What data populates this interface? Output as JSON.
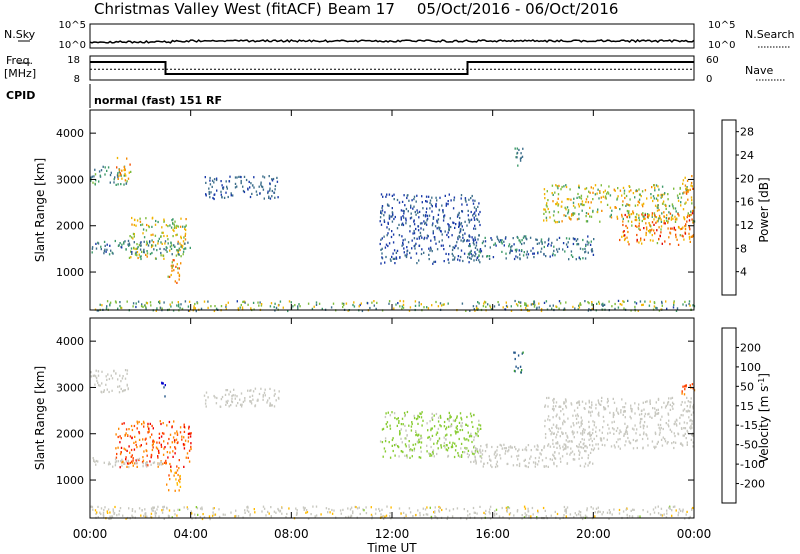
{
  "header": {
    "title": "Christmas Valley West (fitACF)",
    "beam": "Beam 17",
    "date_range": "05/Oct/2016 - 06/Oct/2016"
  },
  "side_labels": {
    "nsky": "N.Sky",
    "freq_line1": "Freq.",
    "freq_line2": "[MHz]",
    "cpid": "CPID",
    "nsearch": "N.Search",
    "nave": "Nave"
  },
  "cpid_text": "normal (fast) 151 RF",
  "noise_axis": {
    "left_ticks": [
      "10^5",
      "10^0"
    ],
    "right_ticks": [
      "10^5",
      "10^0"
    ]
  },
  "freq_axis": {
    "left_ticks": [
      "18",
      "8"
    ],
    "right_ticks": [
      "60",
      "0"
    ]
  },
  "colors": {
    "power": [
      "#0a00ff",
      "#1a3aa8",
      "#3c6e8a",
      "#3e9a6a",
      "#7dbb3a",
      "#f0b400",
      "#f58a00",
      "#f55000",
      "#e00000"
    ],
    "velocity": [
      "#ee0000",
      "#ff4400",
      "#ff8800",
      "#ffbb00",
      "#c8c8c0",
      "#88cc33",
      "#339933",
      "#225588",
      "#0000cc"
    ]
  },
  "chart_data": [
    {
      "type": "heatmap",
      "name": "power",
      "xlabel": "",
      "ylabel": "Slant Range [km]",
      "yticks": [
        1000,
        2000,
        3000,
        4000
      ],
      "ylim": [
        180,
        4500
      ],
      "xlim_hours": [
        0,
        24
      ],
      "colorbar": {
        "label": "Power [dB]",
        "ticks": [
          4,
          8,
          12,
          16,
          20,
          24,
          28
        ],
        "range": [
          0,
          30
        ]
      },
      "regions": [
        {
          "t": [
            0.0,
            1.5
          ],
          "r": [
            2900,
            3300
          ],
          "v": [
            8,
            14
          ]
        },
        {
          "t": [
            1.0,
            1.6
          ],
          "r": [
            3000,
            3500
          ],
          "v": [
            16,
            26
          ]
        },
        {
          "t": [
            1.5,
            3.8
          ],
          "r": [
            1300,
            2200
          ],
          "v": [
            10,
            22
          ]
        },
        {
          "t": [
            3.0,
            3.6
          ],
          "r": [
            750,
            1300
          ],
          "v": [
            14,
            26
          ]
        },
        {
          "t": [
            4.5,
            7.5
          ],
          "r": [
            2600,
            3100
          ],
          "v": [
            5,
            10
          ]
        },
        {
          "t": [
            0.0,
            4.0
          ],
          "r": [
            1400,
            1700
          ],
          "v": [
            6,
            12
          ]
        },
        {
          "t": [
            11.5,
            15.5
          ],
          "r": [
            1200,
            2700
          ],
          "v": [
            4,
            9
          ]
        },
        {
          "t": [
            15.0,
            20.0
          ],
          "r": [
            1300,
            1800
          ],
          "v": [
            5,
            12
          ]
        },
        {
          "t": [
            16.8,
            17.2
          ],
          "r": [
            3300,
            3800
          ],
          "v": [
            6,
            14
          ]
        },
        {
          "t": [
            18.0,
            24.0
          ],
          "r": [
            2100,
            2900
          ],
          "v": [
            10,
            22
          ]
        },
        {
          "t": [
            21.0,
            24.0
          ],
          "r": [
            1600,
            2300
          ],
          "v": [
            16,
            28
          ]
        },
        {
          "t": [
            23.5,
            24.0
          ],
          "r": [
            2700,
            3100
          ],
          "v": [
            18,
            26
          ]
        },
        {
          "t": [
            0.0,
            24.0
          ],
          "r": [
            180,
            400
          ],
          "v": [
            6,
            20
          ]
        }
      ]
    },
    {
      "type": "heatmap",
      "name": "velocity",
      "xlabel": "Time UT",
      "ylabel": "Slant Range [km]",
      "yticks": [
        1000,
        2000,
        3000,
        4000
      ],
      "ylim": [
        180,
        4500
      ],
      "xlim_hours": [
        0,
        24
      ],
      "xticks": [
        "00:00",
        "04:00",
        "08:00",
        "12:00",
        "16:00",
        "20:00",
        "00:00"
      ],
      "colorbar": {
        "label": "Velocity [m s^-1]",
        "ticks": [
          -200,
          -100,
          -50,
          -15,
          15,
          50,
          100,
          200
        ],
        "range": [
          -250,
          250
        ]
      },
      "regions": [
        {
          "t": [
            0.0,
            1.5
          ],
          "r": [
            2900,
            3400
          ],
          "v": [
            -10,
            10
          ]
        },
        {
          "t": [
            1.0,
            4.0
          ],
          "r": [
            1300,
            2300
          ],
          "v": [
            -220,
            -90
          ]
        },
        {
          "t": [
            3.0,
            3.6
          ],
          "r": [
            750,
            1300
          ],
          "v": [
            -150,
            -60
          ]
        },
        {
          "t": [
            2.8,
            3.0
          ],
          "r": [
            2800,
            3200
          ],
          "v": [
            180,
            220
          ]
        },
        {
          "t": [
            0.0,
            3.0
          ],
          "r": [
            1300,
            1500
          ],
          "v": [
            -10,
            10
          ]
        },
        {
          "t": [
            4.5,
            7.5
          ],
          "r": [
            2600,
            3000
          ],
          "v": [
            -10,
            10
          ]
        },
        {
          "t": [
            11.5,
            15.5
          ],
          "r": [
            1500,
            2500
          ],
          "v": [
            20,
            50
          ]
        },
        {
          "t": [
            15.0,
            20.0
          ],
          "r": [
            1300,
            1800
          ],
          "v": [
            -10,
            10
          ]
        },
        {
          "t": [
            18.0,
            24.0
          ],
          "r": [
            1700,
            2800
          ],
          "v": [
            -10,
            10
          ]
        },
        {
          "t": [
            16.8,
            17.2
          ],
          "r": [
            3300,
            3800
          ],
          "v": [
            80,
            200
          ]
        },
        {
          "t": [
            23.5,
            24.0
          ],
          "r": [
            2700,
            3100
          ],
          "v": [
            -200,
            -120
          ]
        },
        {
          "t": [
            0.0,
            24.0
          ],
          "r": [
            180,
            450
          ],
          "v": [
            -40,
            30
          ]
        }
      ]
    },
    {
      "type": "line",
      "name": "frequency",
      "ylim": [
        8,
        18
      ],
      "x_hours": [
        0,
        3,
        3,
        15,
        15,
        24
      ],
      "values": [
        15.5,
        15.5,
        10.5,
        10.5,
        15.5,
        15.5
      ],
      "nave_level": 12.5
    }
  ]
}
